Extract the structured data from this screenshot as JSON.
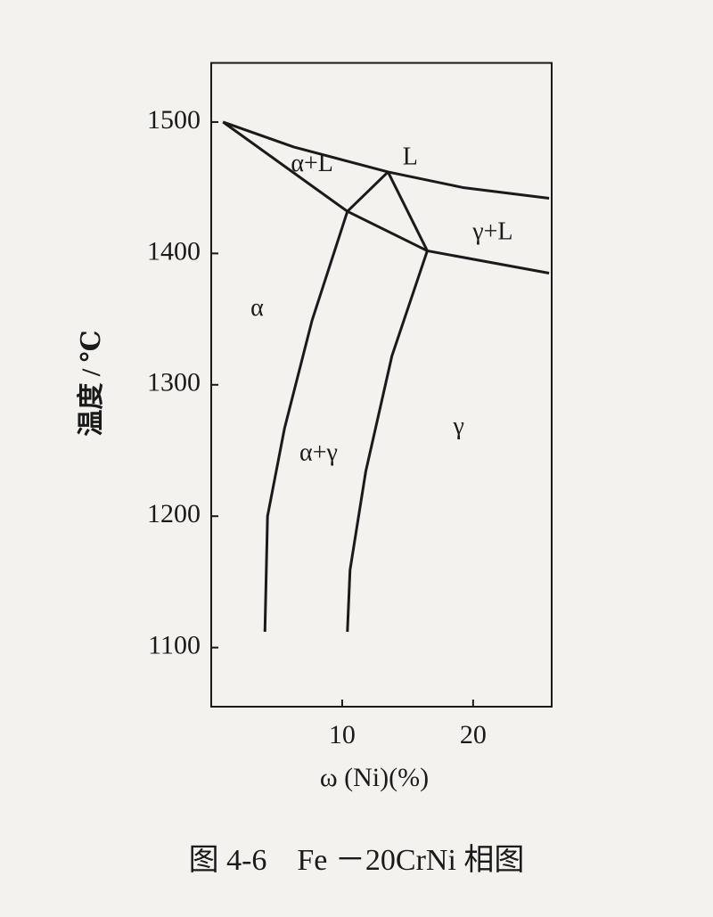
{
  "chart_data": {
    "type": "line",
    "caption": "图 4-6　Fe －20CrNi 相图",
    "x_label": "ω (Ni)(%)",
    "y_label": "温度 / ℃",
    "xlim": [
      0,
      26
    ],
    "ylim": [
      1055,
      1545
    ],
    "xticks": [
      10,
      20
    ],
    "yticks": [
      1100,
      1200,
      1300,
      1400,
      1500
    ],
    "color": "#1a1a1a",
    "series": [
      {
        "x": [
          0.9,
          6.3,
          13.5,
          19.3,
          25.8
        ],
        "values": [
          1500,
          1481,
          1462,
          1450,
          1442
        ]
      },
      {
        "x": [
          0.9,
          10.4,
          13.5
        ],
        "values": [
          1500,
          1432,
          1462
        ]
      },
      {
        "x": [
          10.4,
          16.5,
          25.8
        ],
        "values": [
          1432,
          1402,
          1385
        ]
      },
      {
        "x": [
          13.5,
          16.5
        ],
        "values": [
          1462,
          1402
        ]
      },
      {
        "x": [
          10.4,
          7.7,
          5.6,
          4.3,
          4.1
        ],
        "values": [
          1432,
          1349,
          1267,
          1200,
          1112
        ]
      },
      {
        "x": [
          16.5,
          13.8,
          11.8,
          10.6,
          10.4
        ],
        "values": [
          1402,
          1322,
          1234,
          1159,
          1112
        ]
      }
    ],
    "annotations": [
      {
        "text": "α",
        "x": 3.5,
        "y": 1357
      },
      {
        "text": "α+L",
        "x": 7.7,
        "y": 1467
      },
      {
        "text": "L",
        "x": 15.2,
        "y": 1472
      },
      {
        "text": "γ+L",
        "x": 21.5,
        "y": 1415
      },
      {
        "text": "α+γ",
        "x": 8.2,
        "y": 1247
      },
      {
        "text": "γ",
        "x": 18.9,
        "y": 1267
      }
    ]
  }
}
